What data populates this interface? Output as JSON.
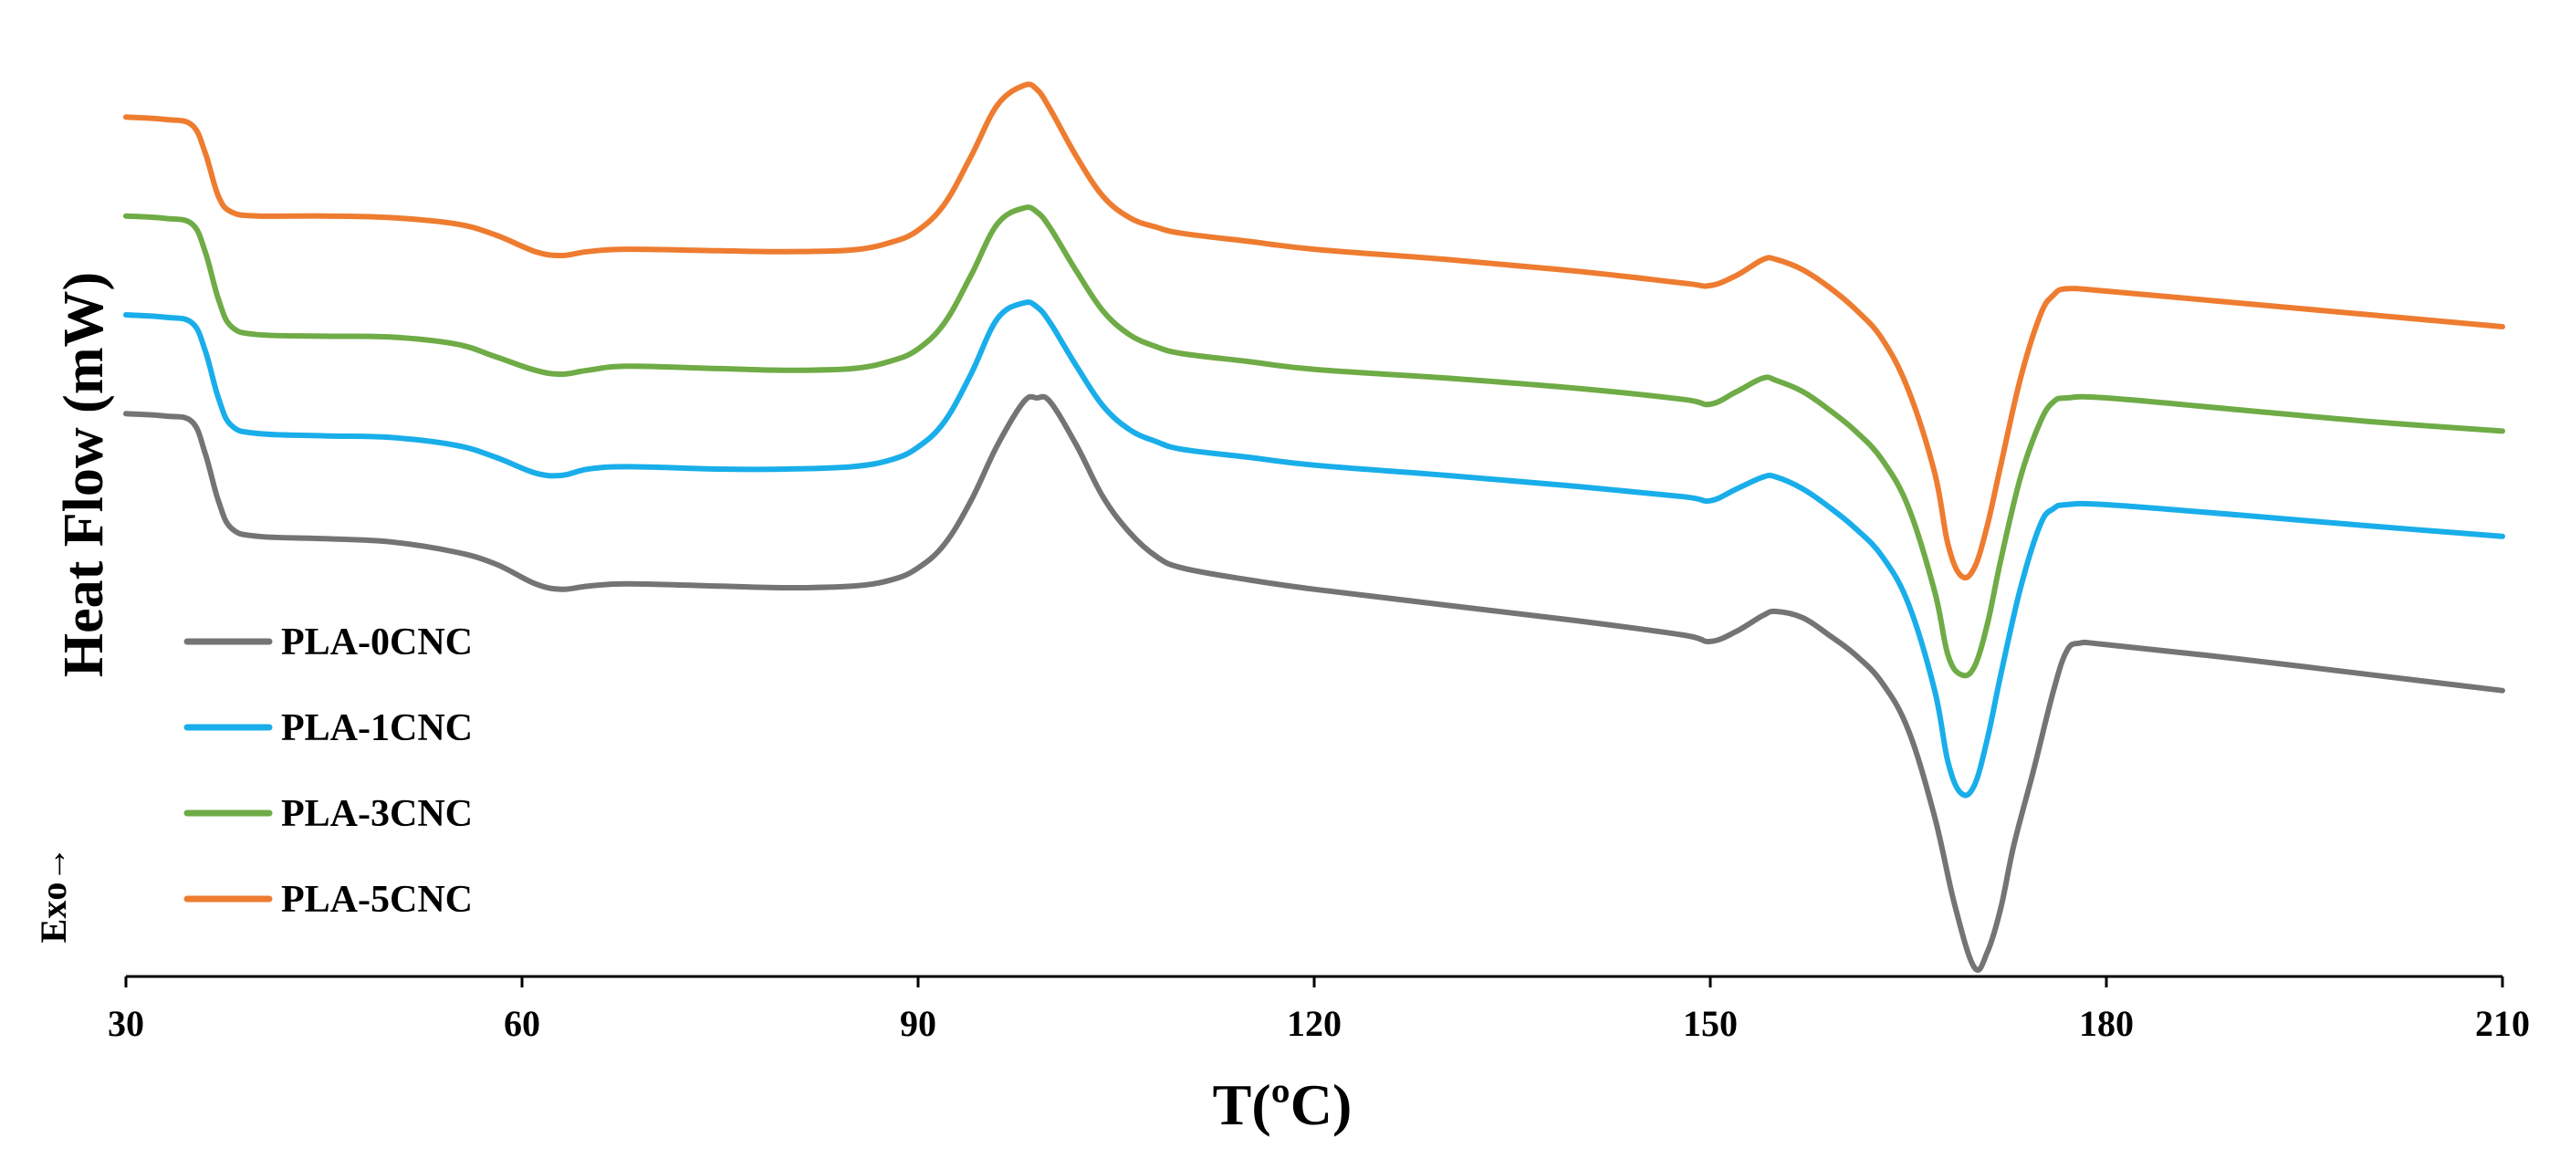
{
  "chart_data": {
    "type": "line",
    "title": "",
    "xlabel": "T(ºC)",
    "ylabel": "Heat Flow (mW)",
    "exo_label": "Exo→",
    "xlim": [
      30,
      210
    ],
    "ylim": [
      0,
      12
    ],
    "y_ticks_shown": false,
    "grid": false,
    "legend_position": "left-bottom",
    "x_ticks": [
      "30",
      "60",
      "90",
      "120",
      "150",
      "180",
      "210"
    ],
    "x_tick_values": [
      30,
      60,
      90,
      120,
      150,
      180,
      210
    ],
    "series": [
      {
        "name": "PLA-0CNC",
        "color": "#747474",
        "x": [
          30,
          33,
          35,
          36,
          37,
          38,
          40,
          45,
          50,
          55,
          58,
          61,
          63,
          65,
          68,
          75,
          80,
          85,
          88,
          90,
          92,
          94,
          96,
          98,
          99,
          100,
          102,
          104,
          106,
          108,
          110,
          115,
          120,
          130,
          140,
          148,
          150,
          152,
          154,
          155,
          157,
          159,
          161,
          163,
          165,
          167,
          168.5,
          170,
          171,
          172,
          173,
          174.5,
          176,
          177,
          178,
          180,
          190,
          200,
          210
        ],
        "y": [
          7.0,
          6.97,
          6.9,
          6.5,
          5.9,
          5.55,
          5.45,
          5.42,
          5.38,
          5.25,
          5.1,
          4.85,
          4.78,
          4.82,
          4.85,
          4.82,
          4.8,
          4.82,
          4.9,
          5.05,
          5.35,
          5.9,
          6.6,
          7.15,
          7.2,
          7.15,
          6.6,
          5.95,
          5.5,
          5.2,
          5.05,
          4.9,
          4.78,
          4.58,
          4.38,
          4.2,
          4.12,
          4.25,
          4.45,
          4.5,
          4.42,
          4.2,
          3.95,
          3.6,
          3.0,
          1.9,
          0.8,
          0.0,
          0.2,
          0.75,
          1.55,
          2.5,
          3.5,
          4.0,
          4.1,
          4.08,
          3.9,
          3.7,
          3.5
        ]
      },
      {
        "name": "PLA-1CNC",
        "color": "#19aeea",
        "x": [
          30,
          33,
          35,
          36,
          37,
          38,
          40,
          45,
          50,
          55,
          58,
          61,
          63,
          65,
          68,
          75,
          80,
          85,
          88,
          90,
          92,
          94,
          96,
          98,
          99,
          100,
          102,
          104,
          106,
          108,
          110,
          115,
          120,
          130,
          140,
          148,
          150,
          152,
          154,
          155,
          157,
          159,
          161,
          163,
          165,
          167,
          168,
          169,
          170,
          171,
          172,
          173.5,
          175,
          176,
          177,
          180,
          190,
          200,
          210
        ],
        "y": [
          8.25,
          8.22,
          8.15,
          7.8,
          7.2,
          6.85,
          6.75,
          6.72,
          6.7,
          6.6,
          6.45,
          6.25,
          6.22,
          6.3,
          6.33,
          6.3,
          6.3,
          6.33,
          6.42,
          6.58,
          6.9,
          7.5,
          8.2,
          8.4,
          8.35,
          8.15,
          7.6,
          7.1,
          6.8,
          6.65,
          6.55,
          6.45,
          6.35,
          6.22,
          6.08,
          5.95,
          5.9,
          6.05,
          6.2,
          6.2,
          6.05,
          5.82,
          5.55,
          5.2,
          4.6,
          3.5,
          2.6,
          2.2,
          2.3,
          2.9,
          3.7,
          4.8,
          5.6,
          5.8,
          5.85,
          5.85,
          5.72,
          5.58,
          5.45
        ]
      },
      {
        "name": "PLA-3CNC",
        "color": "#6fab46",
        "x": [
          30,
          33,
          35,
          36,
          37,
          38,
          40,
          45,
          50,
          55,
          58,
          61,
          63,
          65,
          68,
          75,
          80,
          85,
          88,
          90,
          92,
          94,
          96,
          98,
          99,
          100,
          102,
          104,
          106,
          108,
          110,
          115,
          120,
          130,
          140,
          148,
          150,
          152,
          154,
          155,
          157,
          159,
          161,
          163,
          165,
          167,
          168,
          169,
          170,
          171,
          172,
          173.5,
          175,
          176,
          177,
          180,
          190,
          200,
          210
        ],
        "y": [
          9.5,
          9.47,
          9.4,
          9.05,
          8.45,
          8.1,
          8.0,
          7.98,
          7.97,
          7.88,
          7.72,
          7.55,
          7.5,
          7.55,
          7.6,
          7.57,
          7.55,
          7.57,
          7.67,
          7.82,
          8.15,
          8.75,
          9.4,
          9.6,
          9.55,
          9.35,
          8.8,
          8.3,
          8.0,
          7.85,
          7.76,
          7.66,
          7.56,
          7.45,
          7.32,
          7.18,
          7.12,
          7.28,
          7.45,
          7.42,
          7.28,
          7.05,
          6.78,
          6.42,
          5.82,
          4.75,
          3.95,
          3.7,
          3.8,
          4.35,
          5.15,
          6.2,
          6.9,
          7.15,
          7.2,
          7.2,
          7.05,
          6.9,
          6.78
        ]
      },
      {
        "name": "PLA-5CNC",
        "color": "#ee7c30",
        "x": [
          30,
          33,
          35,
          36,
          37,
          38,
          40,
          45,
          50,
          55,
          58,
          61,
          63,
          65,
          68,
          75,
          80,
          85,
          88,
          90,
          92,
          94,
          96,
          98,
          99,
          100,
          102,
          104,
          106,
          108,
          110,
          115,
          120,
          130,
          140,
          148,
          150,
          152,
          154,
          155,
          157,
          159,
          161,
          163,
          165,
          167,
          168,
          169,
          170,
          171,
          172,
          173.5,
          175,
          176,
          177,
          180,
          190,
          200,
          210
        ],
        "y": [
          10.75,
          10.72,
          10.65,
          10.3,
          9.75,
          9.55,
          9.5,
          9.5,
          9.48,
          9.4,
          9.26,
          9.05,
          9.0,
          9.05,
          9.08,
          9.06,
          9.05,
          9.07,
          9.17,
          9.32,
          9.65,
          10.25,
          10.9,
          11.15,
          11.1,
          10.85,
          10.25,
          9.75,
          9.48,
          9.36,
          9.28,
          9.18,
          9.08,
          8.95,
          8.8,
          8.65,
          8.62,
          8.75,
          8.95,
          8.95,
          8.82,
          8.6,
          8.32,
          7.95,
          7.3,
          6.25,
          5.35,
          4.95,
          5.05,
          5.6,
          6.35,
          7.45,
          8.25,
          8.5,
          8.58,
          8.55,
          8.4,
          8.25,
          8.1
        ]
      }
    ]
  }
}
